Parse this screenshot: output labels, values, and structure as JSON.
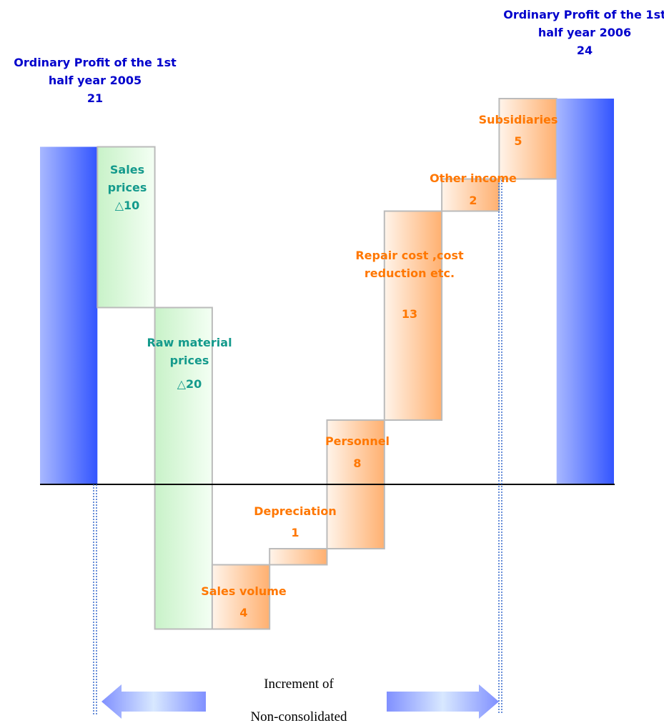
{
  "chart_data": {
    "type": "waterfall",
    "categories": [
      "Ordinary Profit of the 1st half year 2005",
      "Sales prices",
      "Raw material prices",
      "Sales volume",
      "Depreciation",
      "Personnel",
      "Repair cost ,cost reduction etc.",
      "Other income",
      "Subsidiaries",
      "Ordinary Profit of the 1st half year 2006"
    ],
    "values": [
      21,
      -10,
      -20,
      4,
      1,
      8,
      13,
      2,
      5,
      24
    ],
    "value_labels": [
      "21",
      "△10",
      "△20",
      "4",
      "1",
      "8",
      "13",
      "2",
      "5",
      "24"
    ],
    "measure": [
      "total",
      "relative",
      "relative",
      "relative",
      "relative",
      "relative",
      "relative",
      "relative",
      "relative",
      "total"
    ],
    "colors": {
      "total": "#3355ff",
      "decrease": "#c8f2c8",
      "increase": "#ffb070"
    },
    "label_colors": {
      "total": "#0000cc",
      "decrease": "#149a8c",
      "increase": "#ff7700"
    },
    "ylim": [
      -15,
      30
    ],
    "annotations": [
      "Increment of",
      "Non-consolidated"
    ]
  }
}
